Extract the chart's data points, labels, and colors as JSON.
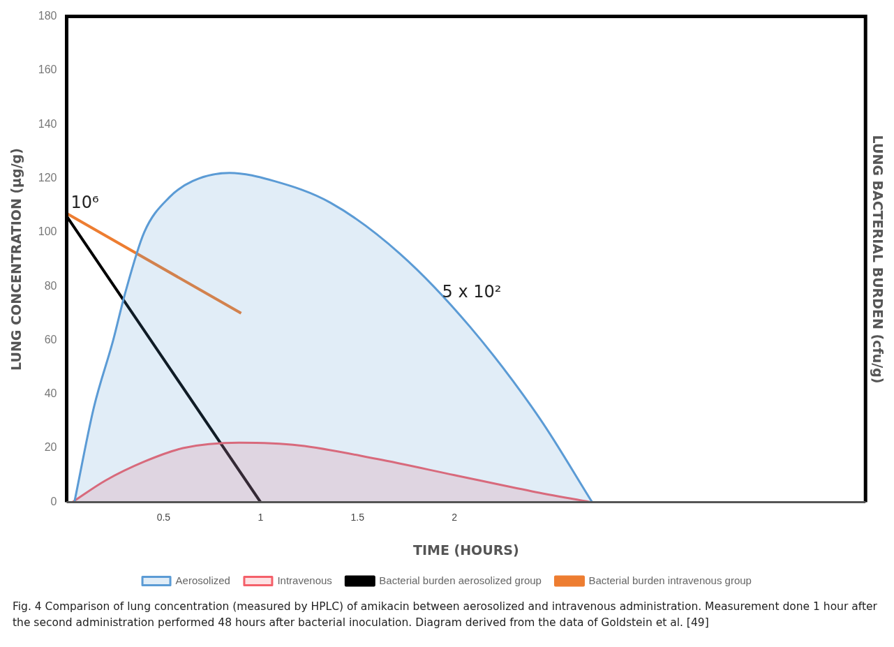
{
  "chart_data": {
    "type": "area",
    "xlabel": "TIME (HOURS)",
    "ylabel": "LUNG CONCENTRATION (µg/g)",
    "y2label": "LUNG BACTERIAL BURDEN (cfu/g)",
    "xlim": [
      0,
      4.12
    ],
    "xticks": [
      0.5,
      1,
      1.5,
      2
    ],
    "ylim": [
      0,
      180
    ],
    "yticks": [
      0,
      20,
      40,
      60,
      80,
      100,
      120,
      140,
      160,
      180
    ],
    "grid": false,
    "legend": "bottom",
    "marker": "none",
    "series": [
      {
        "name": "Aerosolized",
        "color": "#5b9bd5",
        "x": [
          0.04,
          0.14,
          0.24,
          0.3,
          0.4,
          0.53,
          0.65,
          0.84,
          1.07,
          1.36,
          1.72,
          2.08,
          2.44,
          2.71
        ],
        "values": [
          0,
          35,
          60,
          77,
          100,
          113,
          119,
          122,
          119,
          111,
          92,
          65,
          31,
          0
        ]
      },
      {
        "name": "Intravenous",
        "color": "#f4606a",
        "x": [
          0.03,
          0.2,
          0.4,
          0.6,
          0.89,
          1.2,
          1.6,
          2.0,
          2.4,
          2.7
        ],
        "values": [
          0,
          8,
          15,
          20,
          22,
          21,
          16,
          10,
          4,
          0
        ]
      },
      {
        "name": "Bacterial burden aerosolized group",
        "type": "line",
        "color": "#000000",
        "x": [
          0,
          1.0
        ],
        "values": [
          106,
          0
        ]
      },
      {
        "name": "Bacterial burden intravenous group",
        "type": "line",
        "color": "#ed7d31",
        "x": [
          0,
          0.9
        ],
        "values": [
          107,
          70
        ]
      }
    ],
    "annotations": [
      {
        "text": "10⁶",
        "x": 0,
        "y": 107
      },
      "5 x 10²",
      "Fig. 4 Comparison of lung concentration (measured by HPLC) of amikacin between aerosolized and intravenous administration. Measurement done 1 hour after the second administration performed 48 hours after bacterial inoculation. Diagram derived from the data of Goldstein et al. [49]"
    ]
  }
}
